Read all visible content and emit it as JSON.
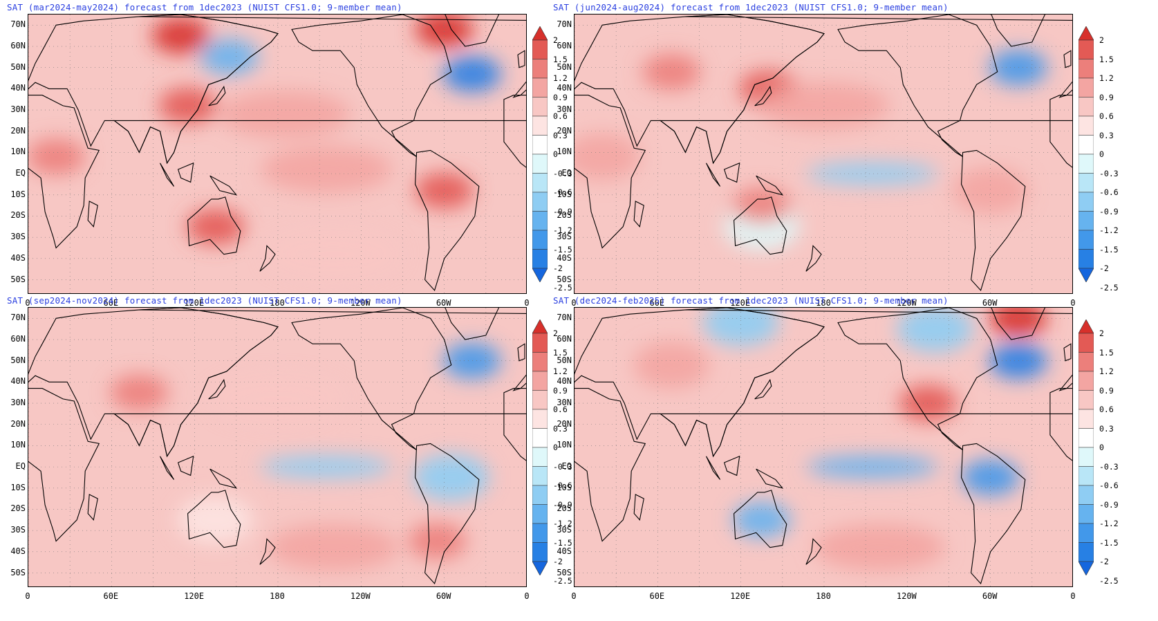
{
  "panels": [
    {
      "title": "SAT (mar2024-may2024) forecast from 1dec2023 (NUIST CFS1.0; 9-member mean)",
      "season": "mar2024-may2024",
      "anomaly_pattern": [
        {
          "region": "Canadian Arctic / Greenland",
          "value": 2.0
        },
        {
          "region": "East Asia",
          "value": 1.5
        },
        {
          "region": "Siberia",
          "value": 2.0
        },
        {
          "region": "Northwest Atlantic",
          "value": -2.0
        },
        {
          "region": "Okhotsk",
          "value": -1.2
        },
        {
          "region": "Central Pacific",
          "value": 0.9
        },
        {
          "region": "Eastern Pacific",
          "value": 0.9
        },
        {
          "region": "Australia",
          "value": 1.5
        },
        {
          "region": "South America",
          "value": 1.5
        },
        {
          "region": "Africa",
          "value": 1.2
        },
        {
          "region": "South Pacific",
          "value": 0.6
        }
      ]
    },
    {
      "title": "SAT (jun2024-aug2024) forecast from 1dec2023 (NUIST CFS1.0; 9-member mean)",
      "season": "jun2024-aug2024",
      "anomaly_pattern": [
        {
          "region": "Eurasia",
          "value": 1.2
        },
        {
          "region": "Japan",
          "value": 1.5
        },
        {
          "region": "North Atlantic",
          "value": -1.5
        },
        {
          "region": "Equatorial Pacific",
          "value": -0.9
        },
        {
          "region": "Australia",
          "value": -0.3
        },
        {
          "region": "Northern Australia",
          "value": 1.2
        },
        {
          "region": "South America",
          "value": 0.9
        },
        {
          "region": "Africa",
          "value": 0.9
        },
        {
          "region": "North Pacific",
          "value": 0.9
        }
      ]
    },
    {
      "title": "SAT (sep2024-nov2024) forecast from 1dec2023 (NUIST CFS1.0; 9-member mean)",
      "season": "sep2024-nov2024",
      "anomaly_pattern": [
        {
          "region": "Central Asia",
          "value": 1.2
        },
        {
          "region": "North Atlantic",
          "value": -1.5
        },
        {
          "region": "Equatorial Pacific",
          "value": -0.9
        },
        {
          "region": "South Pacific",
          "value": 0.9
        },
        {
          "region": "Northern South America",
          "value": -0.9
        },
        {
          "region": "Southern South America",
          "value": 1.2
        },
        {
          "region": "North Pacific",
          "value": 0.6
        },
        {
          "region": "Australia",
          "value": 0.3
        }
      ]
    },
    {
      "title": "SAT (dec2024-feb2025) forecast from 1dec2023 (NUIST CFS1.0; 9-member mean)",
      "season": "dec2024-feb2025",
      "anomaly_pattern": [
        {
          "region": "Greenland",
          "value": 2.0
        },
        {
          "region": "Siberia / Arctic",
          "value": -0.9
        },
        {
          "region": "Canada",
          "value": -0.9
        },
        {
          "region": "North Atlantic",
          "value": -2.0
        },
        {
          "region": "USA / Mexico",
          "value": 1.5
        },
        {
          "region": "Equatorial Pacific",
          "value": -1.2
        },
        {
          "region": "Amazon",
          "value": -1.5
        },
        {
          "region": "Australia",
          "value": -1.2
        },
        {
          "region": "Eurasia",
          "value": 0.9
        },
        {
          "region": "South Pacific",
          "value": 0.9
        }
      ]
    }
  ],
  "lat_labels": [
    "70N",
    "60N",
    "50N",
    "40N",
    "30N",
    "20N",
    "10N",
    "EQ",
    "10S",
    "20S",
    "30S",
    "40S",
    "50S"
  ],
  "lon_labels": [
    "0",
    "60E",
    "120E",
    "180",
    "120W",
    "60W",
    "0"
  ],
  "colorbar": {
    "levels": [
      "2",
      "1.5",
      "1.2",
      "0.9",
      "0.6",
      "0.3",
      "0",
      "-0.3",
      "-0.6",
      "-0.9",
      "-1.2",
      "-1.5",
      "-2",
      "-2.5"
    ],
    "colors": [
      "#d7302b",
      "#e35a55",
      "#ec7f7b",
      "#f3a5a2",
      "#f8c7c4",
      "#fde4e2",
      "#ffffff",
      "#dff8fa",
      "#b9e6f7",
      "#8fcdf3",
      "#66b3ef",
      "#4298ea",
      "#2780e4",
      "#1566de"
    ]
  },
  "style": {
    "title_color": "#2a3fe0",
    "ocean_base": "#f7c7c4",
    "land_outline": "#000000"
  }
}
